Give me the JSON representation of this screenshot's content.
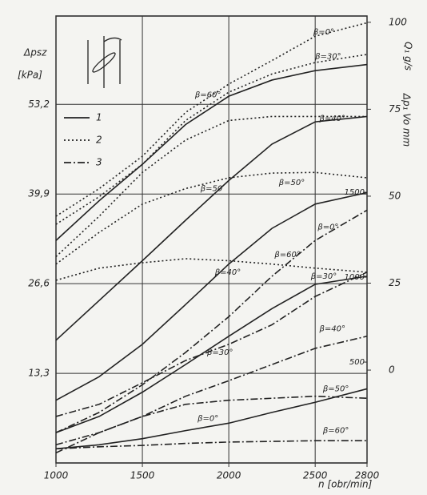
{
  "chart_data": {
    "type": "line",
    "y_label": "Δpsz",
    "y_unit": "[kPa]",
    "x_label": "n [obr/min]",
    "y2_label": "Δp₁ Vo mm",
    "y3_label": "Q₁ g/s",
    "x": [
      1000,
      1250,
      1500,
      1750,
      2000,
      2250,
      2500,
      2800
    ],
    "xlim": [
      1000,
      2800
    ],
    "xticks": [
      1000,
      1500,
      2000,
      2500,
      2800
    ],
    "ylim": [
      0,
      66.3
    ],
    "yticks": [
      {
        "value": 13.3,
        "label": "13,3"
      },
      {
        "value": 26.6,
        "label": "26,6"
      },
      {
        "value": 39.9,
        "label": "39,9"
      },
      {
        "value": 53.2,
        "label": "53,2"
      }
    ],
    "y2lim": [
      -26.7,
      101.8
    ],
    "y2ticks": [
      0,
      25,
      50,
      75,
      100
    ],
    "y3lim": [
      -94,
      2538
    ],
    "y3ticks": [
      500,
      1000,
      1500
    ],
    "grid": true,
    "legend": [
      {
        "label": "1",
        "style": "solid"
      },
      {
        "label": "2",
        "style": "dotted"
      },
      {
        "label": "3",
        "style": "dashdot"
      }
    ],
    "series": [
      {
        "style": "solid",
        "color": "#222222",
        "values": [
          33.0,
          38.9,
          44.3,
          50.2,
          54.4,
          56.8,
          58.2,
          59.1
        ]
      },
      {
        "style": "solid",
        "color": "#222222",
        "values": [
          18.2,
          24.1,
          30.0,
          36.0,
          41.9,
          47.3,
          50.6,
          51.4
        ]
      },
      {
        "style": "solid",
        "color": "#222222",
        "values": [
          9.3,
          12.8,
          17.6,
          23.5,
          29.5,
          34.8,
          38.4,
          40.1
        ]
      },
      {
        "style": "solid",
        "color": "#222222",
        "values": [
          4.5,
          6.9,
          10.5,
          14.6,
          18.8,
          22.9,
          26.5,
          27.7
        ]
      },
      {
        "style": "solid",
        "color": "#222222",
        "values": [
          2.1,
          2.7,
          3.6,
          4.8,
          5.9,
          7.5,
          9.0,
          11.0
        ]
      },
      {
        "style": "dotted",
        "color": "#222222",
        "values": [
          36.6,
          40.7,
          45.5,
          52.0,
          56.2,
          59.7,
          63.3,
          65.3
        ]
      },
      {
        "style": "dotted",
        "color": "#222222",
        "values": [
          35.4,
          39.5,
          44.3,
          50.8,
          55.0,
          57.7,
          59.4,
          60.6
        ]
      },
      {
        "style": "dotted",
        "color": "#222222",
        "values": [
          30.6,
          36.6,
          43.1,
          47.9,
          50.8,
          51.4,
          51.4,
          51.4
        ]
      },
      {
        "style": "dotted",
        "color": "#222222",
        "values": [
          29.5,
          34.2,
          38.4,
          40.7,
          42.3,
          43.0,
          43.1,
          42.3
        ]
      },
      {
        "style": "dotted",
        "color": "#222222",
        "values": [
          27.1,
          28.9,
          29.7,
          30.3,
          30.0,
          29.5,
          28.9,
          28.3
        ]
      },
      {
        "style": "dashdot",
        "color": "#222222",
        "values": [
          4.5,
          7.5,
          11.6,
          16.4,
          21.7,
          27.7,
          33.0,
          37.5
        ]
      },
      {
        "style": "dashdot",
        "color": "#222222",
        "values": [
          6.9,
          8.7,
          11.9,
          15.2,
          17.6,
          20.5,
          24.7,
          28.3
        ]
      },
      {
        "style": "dashdot",
        "color": "#222222",
        "values": [
          2.7,
          4.5,
          6.9,
          9.9,
          12.2,
          14.6,
          17.0,
          18.8
        ]
      },
      {
        "style": "dashdot",
        "color": "#222222",
        "values": [
          1.5,
          4.5,
          6.9,
          8.7,
          9.3,
          9.6,
          9.9,
          9.6
        ]
      },
      {
        "style": "dashdot",
        "color": "#222222",
        "values": [
          2.1,
          2.4,
          2.6,
          2.9,
          3.1,
          3.2,
          3.3,
          3.3
        ]
      }
    ],
    "annotations": [
      {
        "text": "β=0°",
        "x": 2550,
        "y": 63.9
      },
      {
        "text": "β=30°",
        "x": 2575,
        "y": 60.3
      },
      {
        "text": "β=60°",
        "x": 1880,
        "y": 54.6
      },
      {
        "text": "β=40°",
        "x": 2600,
        "y": 51.1
      },
      {
        "text": "β=50",
        "x": 1900,
        "y": 40.7
      },
      {
        "text": "β=50°",
        "x": 2365,
        "y": 41.6
      },
      {
        "text": "β=0°",
        "x": 2575,
        "y": 35.0
      },
      {
        "text": "β=60°",
        "x": 2340,
        "y": 30.9
      },
      {
        "text": "β=40°",
        "x": 1995,
        "y": 28.3
      },
      {
        "text": "β=30°",
        "x": 2550,
        "y": 27.7
      },
      {
        "text": "β=40°",
        "x": 2600,
        "y": 19.9
      },
      {
        "text": "β=30°",
        "x": 1950,
        "y": 16.4
      },
      {
        "text": "β=50°",
        "x": 2620,
        "y": 11.0
      },
      {
        "text": "β=0°",
        "x": 1880,
        "y": 6.6
      },
      {
        "text": "β=60°",
        "x": 2620,
        "y": 4.8
      }
    ]
  }
}
